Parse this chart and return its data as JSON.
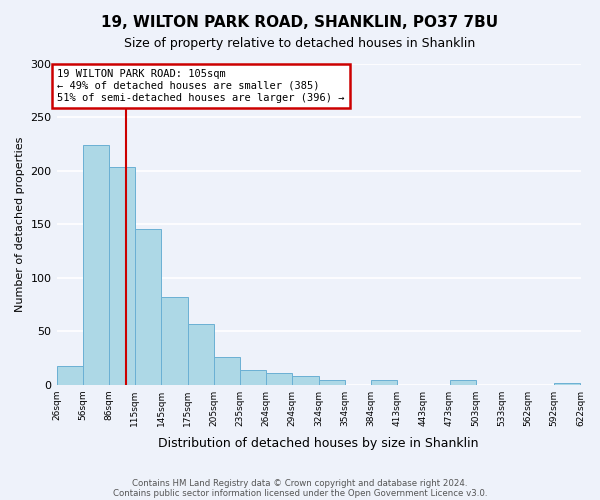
{
  "title": "19, WILTON PARK ROAD, SHANKLIN, PO37 7BU",
  "subtitle": "Size of property relative to detached houses in Shanklin",
  "xlabel": "Distribution of detached houses by size in Shanklin",
  "ylabel": "Number of detached properties",
  "bar_color": "#add8e6",
  "bar_edge_color": "#6ab0d4",
  "background_color": "#eef2fa",
  "grid_color": "#ffffff",
  "bins": [
    26,
    56,
    86,
    115,
    145,
    175,
    205,
    235,
    264,
    294,
    324,
    354,
    384,
    413,
    443,
    473,
    503,
    533,
    562,
    592,
    622
  ],
  "bin_labels": [
    "26sqm",
    "56sqm",
    "86sqm",
    "115sqm",
    "145sqm",
    "175sqm",
    "205sqm",
    "235sqm",
    "264sqm",
    "294sqm",
    "324sqm",
    "354sqm",
    "384sqm",
    "413sqm",
    "443sqm",
    "473sqm",
    "503sqm",
    "533sqm",
    "562sqm",
    "592sqm",
    "622sqm"
  ],
  "counts": [
    17,
    224,
    204,
    146,
    82,
    57,
    26,
    14,
    11,
    8,
    4,
    0,
    4,
    0,
    0,
    4,
    0,
    0,
    0,
    2
  ],
  "vline_x": 105,
  "vline_color": "#cc0000",
  "annotation_line1": "19 WILTON PARK ROAD: 105sqm",
  "annotation_line2": "← 49% of detached houses are smaller (385)",
  "annotation_line3": "51% of semi-detached houses are larger (396) →",
  "annotation_box_color": "#ffffff",
  "annotation_box_edge_color": "#cc0000",
  "ylim": [
    0,
    300
  ],
  "yticks": [
    0,
    50,
    100,
    150,
    200,
    250,
    300
  ],
  "footer1": "Contains HM Land Registry data © Crown copyright and database right 2024.",
  "footer2": "Contains public sector information licensed under the Open Government Licence v3.0."
}
